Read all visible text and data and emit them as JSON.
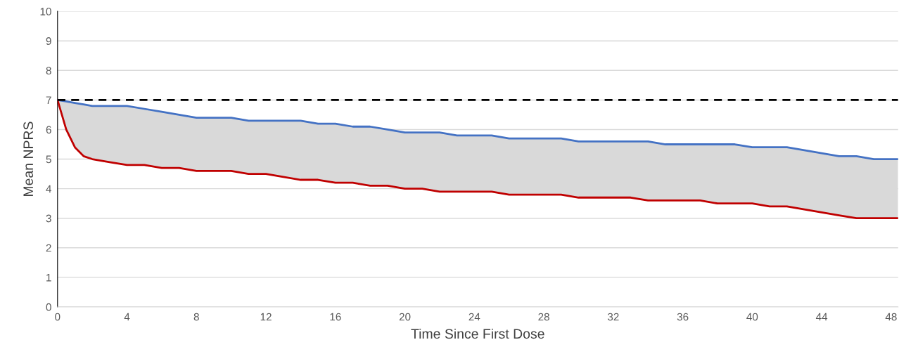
{
  "chart_data": {
    "type": "line",
    "xlabel": "Time Since First Dose",
    "ylabel": "Mean NPRS",
    "x": [
      0,
      0.5,
      1,
      1.5,
      2,
      3,
      4,
      5,
      6,
      7,
      8,
      9,
      10,
      11,
      12,
      13,
      14,
      15,
      16,
      17,
      18,
      19,
      20,
      21,
      22,
      23,
      24,
      25,
      26,
      27,
      28,
      29,
      30,
      31,
      32,
      33,
      34,
      35,
      36,
      37,
      38,
      39,
      40,
      41,
      42,
      43,
      44,
      45,
      46,
      47,
      48,
      48.4
    ],
    "series": [
      {
        "color": "#4472c4",
        "values": [
          7.0,
          6.95,
          6.9,
          6.85,
          6.8,
          6.8,
          6.8,
          6.7,
          6.6,
          6.5,
          6.4,
          6.4,
          6.4,
          6.3,
          6.3,
          6.3,
          6.3,
          6.2,
          6.2,
          6.1,
          6.1,
          6.0,
          5.9,
          5.9,
          5.9,
          5.8,
          5.8,
          5.8,
          5.7,
          5.7,
          5.7,
          5.7,
          5.6,
          5.6,
          5.6,
          5.6,
          5.6,
          5.5,
          5.5,
          5.5,
          5.5,
          5.5,
          5.4,
          5.4,
          5.4,
          5.3,
          5.2,
          5.1,
          5.1,
          5.0,
          5.0,
          5.0
        ],
        "lower": [
          7.0,
          6.0,
          5.4,
          5.1,
          5.0,
          4.9,
          4.8,
          4.8,
          4.7,
          4.7,
          4.6,
          4.6,
          4.6,
          4.5,
          4.5,
          4.4,
          4.3,
          4.3,
          4.2,
          4.2,
          4.1,
          4.1,
          4.0,
          4.0,
          3.9,
          3.9,
          3.9,
          3.9,
          3.8,
          3.8,
          3.8,
          3.8,
          3.7,
          3.7,
          3.7,
          3.7,
          3.6,
          3.6,
          3.6,
          3.6,
          3.5,
          3.5,
          3.5,
          3.4,
          3.4,
          3.3,
          3.2,
          3.1,
          3.0,
          3.0,
          3.0,
          3.0
        ],
        "upper": [
          7.0,
          6.95,
          6.9,
          6.85,
          6.8,
          6.8,
          6.8,
          6.7,
          6.6,
          6.5,
          6.4,
          6.4,
          6.4,
          6.3,
          6.3,
          6.3,
          6.3,
          6.2,
          6.2,
          6.1,
          6.1,
          6.0,
          5.9,
          5.9,
          5.9,
          5.8,
          5.8,
          5.8,
          5.7,
          5.7,
          5.7,
          5.7,
          5.6,
          5.6,
          5.6,
          5.6,
          5.6,
          5.5,
          5.5,
          5.5,
          5.5,
          5.5,
          5.4,
          5.4,
          5.4,
          5.3,
          5.2,
          5.1,
          5.1,
          5.0,
          5.0,
          5.0
        ]
      },
      {
        "color": "#c00000",
        "values": [
          7.0,
          6.0,
          5.4,
          5.1,
          5.0,
          4.9,
          4.8,
          4.8,
          4.7,
          4.7,
          4.6,
          4.6,
          4.6,
          4.5,
          4.5,
          4.4,
          4.3,
          4.3,
          4.2,
          4.2,
          4.1,
          4.1,
          4.0,
          4.0,
          3.9,
          3.9,
          3.9,
          3.9,
          3.8,
          3.8,
          3.8,
          3.8,
          3.7,
          3.7,
          3.7,
          3.7,
          3.6,
          3.6,
          3.6,
          3.6,
          3.5,
          3.5,
          3.5,
          3.4,
          3.4,
          3.3,
          3.2,
          3.1,
          3.0,
          3.0,
          3.0,
          3.0
        ]
      }
    ],
    "ref_lines": [
      {
        "axis": "y",
        "value": 7,
        "color": "#000000",
        "line_style": "dashed"
      }
    ],
    "xlim": [
      0,
      48.4
    ],
    "xticks": [
      0,
      4,
      8,
      12,
      16,
      20,
      24,
      28,
      32,
      36,
      40,
      44,
      48
    ],
    "ylim": [
      0,
      10
    ],
    "yticks": [
      0,
      1,
      2,
      3,
      4,
      5,
      6,
      7,
      8,
      9,
      10
    ],
    "grid": "y",
    "legend": false,
    "marker": "none",
    "line_style": "solid"
  }
}
